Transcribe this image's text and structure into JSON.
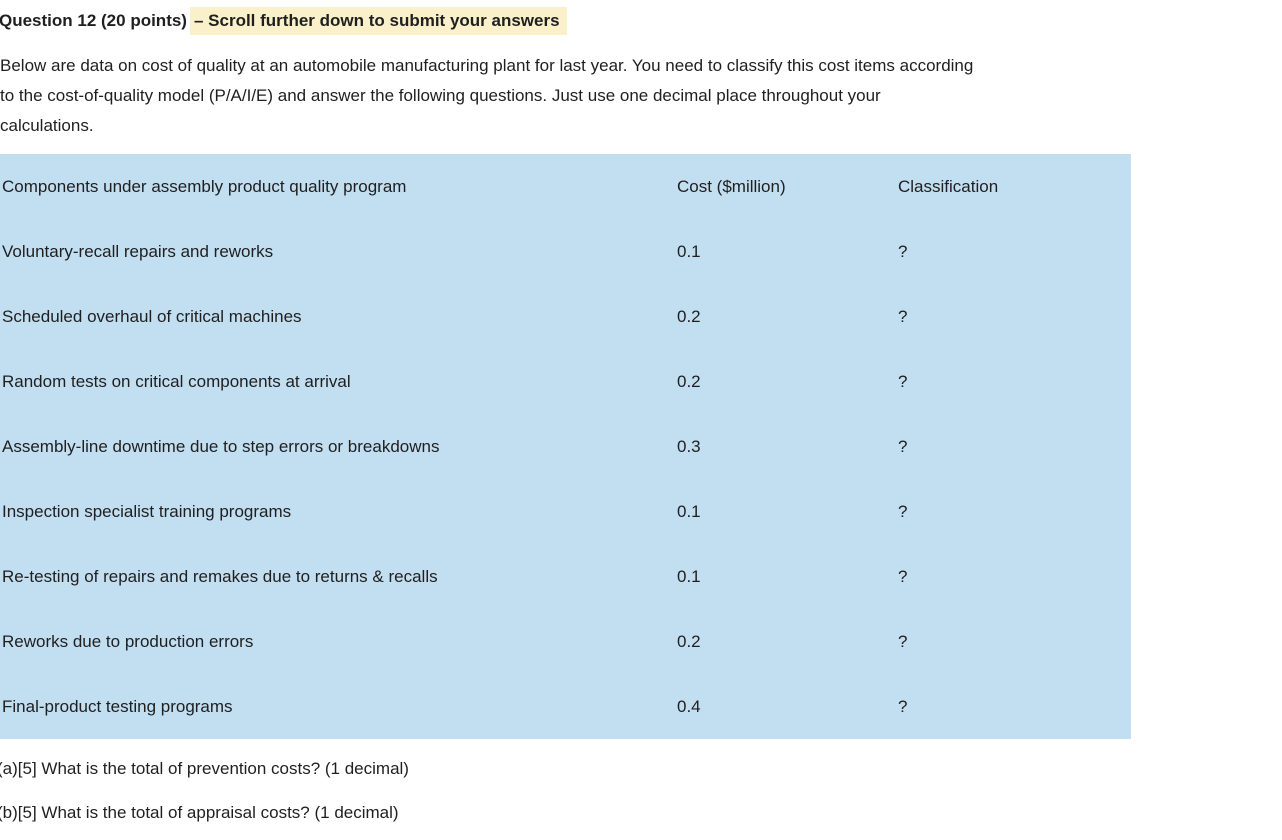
{
  "header": {
    "title": "Question 12 (20 points)",
    "highlighted_note": "– Scroll further down to submit your answers"
  },
  "intro_lines": [
    "Below are data on cost of quality at an automobile manufacturing plant for last year. You need to classify this cost items according",
    "to the cost-of-quality model (P/A/I/E) and answer the following questions. Just use one decimal place throughout your",
    "calculations."
  ],
  "table": {
    "columns": [
      "Components under assembly product quality program",
      "Cost ($million)",
      "Classification"
    ],
    "rows": [
      [
        "Voluntary-recall repairs and reworks",
        "0.1",
        "?"
      ],
      [
        "Scheduled overhaul of critical machines",
        "0.2",
        "?"
      ],
      [
        "Random tests on critical components at arrival",
        "0.2",
        "?"
      ],
      [
        "Assembly-line downtime due to step errors or breakdowns",
        "0.3",
        "?"
      ],
      [
        "Inspection specialist training programs",
        "0.1",
        "?"
      ],
      [
        "Re-testing of repairs and remakes due to returns & recalls",
        "0.1",
        "?"
      ],
      [
        "Reworks due to production errors",
        "0.2",
        "?"
      ],
      [
        "Final-product testing programs",
        "0.4",
        "?"
      ]
    ]
  },
  "questions": [
    "(a)[5] What is the total of prevention costs? (1 decimal)",
    "(b)[5] What is the total of appraisal costs? (1 decimal)"
  ],
  "colors": {
    "highlight_bg": "#faf1ca",
    "table_bg": "#c2def1",
    "text": "#1f1f1f"
  }
}
